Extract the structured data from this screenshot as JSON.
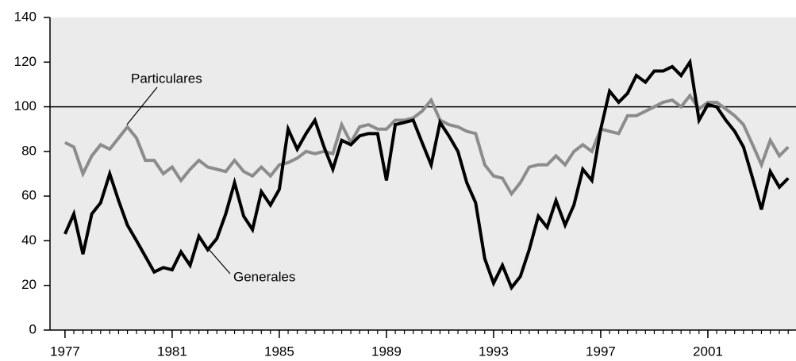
{
  "chart_data": {
    "type": "line",
    "x": [
      1977,
      1977.33,
      1977.67,
      1978,
      1978.33,
      1978.67,
      1979,
      1979.33,
      1979.67,
      1980,
      1980.33,
      1980.67,
      1981,
      1981.33,
      1981.67,
      1982,
      1982.33,
      1982.67,
      1983,
      1983.33,
      1983.67,
      1984,
      1984.33,
      1984.67,
      1985,
      1985.33,
      1985.67,
      1986,
      1986.33,
      1986.67,
      1987,
      1987.33,
      1987.67,
      1988,
      1988.33,
      1988.67,
      1989,
      1989.33,
      1989.67,
      1990,
      1990.33,
      1990.67,
      1991,
      1991.33,
      1991.67,
      1992,
      1992.33,
      1992.67,
      1993,
      1993.33,
      1993.67,
      1994,
      1994.33,
      1994.67,
      1995,
      1995.33,
      1995.67,
      1996,
      1996.33,
      1996.67,
      1997,
      1997.33,
      1997.67,
      1998,
      1998.33,
      1998.67,
      1999,
      1999.33,
      1999.67,
      2000,
      2000.33,
      2000.67,
      2001,
      2001.33,
      2001.67,
      2002,
      2002.33,
      2002.67,
      2003,
      2003.33,
      2003.67,
      2004
    ],
    "series": [
      {
        "name": "Particulares",
        "color": "#8c8c8c",
        "values": [
          84,
          82,
          70,
          78,
          83,
          81,
          86,
          91,
          86,
          76,
          76,
          70,
          73,
          67,
          72,
          76,
          73,
          72,
          71,
          76,
          71,
          69,
          73,
          69,
          74,
          75,
          77,
          80,
          79,
          80,
          79,
          92,
          84,
          91,
          92,
          90,
          90,
          94,
          94,
          95,
          98,
          103,
          94,
          92,
          91,
          89,
          88,
          74,
          69,
          68,
          61,
          66,
          73,
          74,
          74,
          78,
          74,
          80,
          83,
          80,
          90,
          89,
          88,
          96,
          96,
          98,
          100,
          102,
          103,
          100,
          105,
          99,
          102,
          102,
          99,
          96,
          92,
          83,
          74,
          85,
          78,
          82
        ]
      },
      {
        "name": "Generales",
        "color": "#000000",
        "values": [
          43,
          52,
          34,
          52,
          57,
          70,
          58,
          47,
          40,
          33,
          26,
          28,
          27,
          35,
          29,
          42,
          36,
          41,
          52,
          66,
          51,
          45,
          62,
          56,
          63,
          90,
          81,
          88,
          94,
          82,
          72,
          85,
          83,
          87,
          88,
          88,
          67,
          92,
          93,
          94,
          84,
          74,
          93,
          87,
          80,
          66,
          57,
          32,
          21,
          29,
          19,
          24,
          36,
          51,
          46,
          58,
          47,
          56,
          72,
          67,
          90,
          107,
          102,
          106,
          114,
          111,
          116,
          116,
          118,
          114,
          120,
          94,
          101,
          100,
          94,
          89,
          82,
          68,
          54,
          71,
          64,
          68
        ]
      }
    ],
    "xlim": [
      1976.44,
      2004.29
    ],
    "xticks": [
      1977,
      1981,
      1985,
      1989,
      1993,
      1997,
      2001
    ],
    "ylim": [
      0,
      140
    ],
    "yticks": [
      0,
      20,
      40,
      60,
      80,
      100,
      120,
      140
    ],
    "hline": 100,
    "background": "#ebebeb"
  }
}
